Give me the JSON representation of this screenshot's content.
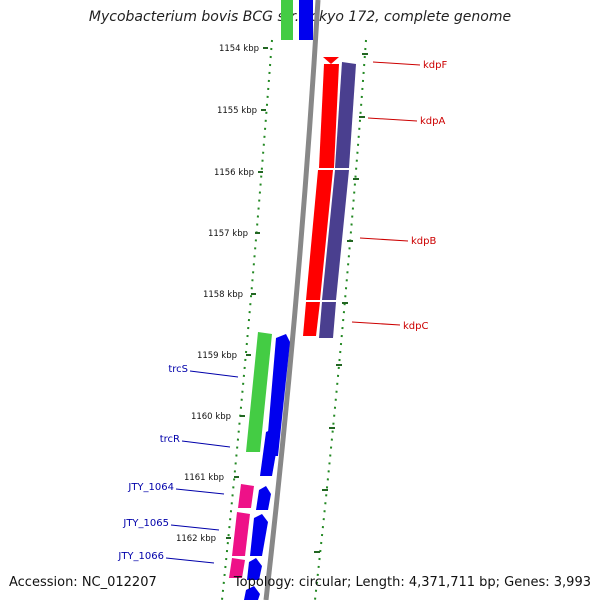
{
  "title": "Mycobacterium bovis BCG str. Tokyo 172, complete genome",
  "accession": "Accession: NC_012207",
  "summary": "Topology: circular; Length: 4,371,711 bp; Genes: 3,993",
  "ticks": [
    "1154 kbp",
    "1155 kbp",
    "1156 kbp",
    "1157 kbp",
    "1158 kbp",
    "1159 kbp",
    "1160 kbp",
    "1161 kbp",
    "1162 kbp"
  ],
  "genes_right": [
    "kdpF",
    "kdpA",
    "kdpB",
    "kdpC"
  ],
  "genes_left": [
    "trcS",
    "trcR",
    "JTY_1064",
    "JTY_1065",
    "JTY_1066"
  ],
  "colors": {
    "forward_red": "#ff0000",
    "cds_purple": "#4a3f8f",
    "rna_green": "#44cc44",
    "cds_blue": "#0000ee",
    "magenta": "#ee1188",
    "backbone": "#888888",
    "dots": "#228822",
    "label_red": "#cc0000",
    "label_blue": "#0000aa"
  }
}
